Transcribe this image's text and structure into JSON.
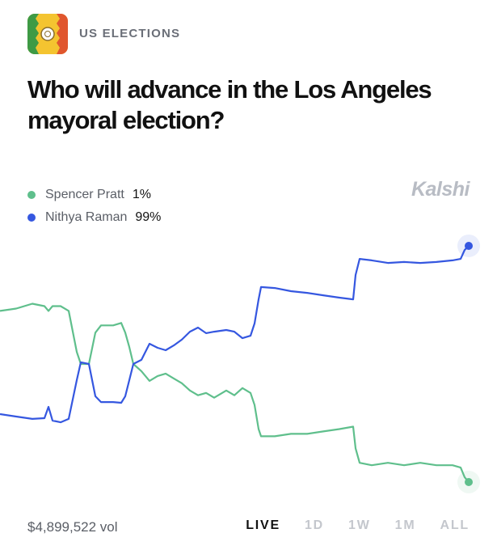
{
  "header": {
    "category": "US ELECTIONS",
    "title": "Who will advance in the Los Angeles mayoral election?",
    "brand": "Kalshi"
  },
  "chart_data": {
    "type": "line",
    "xlim": [
      0,
      580
    ],
    "ylim": [
      0,
      100
    ],
    "x": [
      0,
      20,
      40,
      55,
      60,
      65,
      75,
      85,
      95,
      100,
      110,
      118,
      125,
      140,
      150,
      155,
      160,
      165,
      175,
      185,
      195,
      205,
      215,
      225,
      235,
      245,
      255,
      265,
      280,
      290,
      300,
      310,
      315,
      320,
      323,
      340,
      360,
      380,
      400,
      420,
      437,
      440,
      445,
      460,
      480,
      500,
      520,
      540,
      560,
      570,
      575,
      580
    ],
    "series": [
      {
        "name": "Spencer Pratt",
        "color": "#5fbf8c",
        "values": [
          72,
          73,
          75,
          74,
          72,
          74,
          74,
          72,
          55,
          50,
          50,
          63,
          66,
          66,
          67,
          63,
          57,
          50,
          47,
          43,
          45,
          46,
          44,
          42,
          39,
          37,
          38,
          36,
          39,
          37,
          40,
          38,
          33,
          23,
          20,
          20,
          21,
          21,
          22,
          23,
          24,
          15,
          9,
          8,
          9,
          8,
          9,
          8,
          8,
          7,
          3,
          1
        ],
        "current": {
          "value": 1,
          "label": "1%"
        }
      },
      {
        "name": "Nithya Raman",
        "color": "#3557e0",
        "values": [
          29.2,
          28.2,
          27.2,
          27.5,
          32.2,
          26.5,
          25.8,
          27.2,
          43.3,
          50.7,
          50,
          36.6,
          34.2,
          34.2,
          33.9,
          36.6,
          43.3,
          50,
          51.7,
          58.4,
          56.7,
          55.7,
          57.7,
          60.1,
          63.4,
          65.1,
          62.8,
          63.4,
          64.1,
          63.4,
          60.7,
          61.7,
          66.8,
          76.8,
          81.9,
          81.5,
          80.2,
          79.5,
          78.5,
          77.5,
          76.8,
          86.9,
          93.6,
          93,
          91.9,
          92.3,
          91.9,
          92.3,
          93,
          93.6,
          97.3,
          99
        ],
        "current": {
          "value": 99,
          "label": "99%"
        }
      }
    ]
  },
  "footer": {
    "volume": "$4,899,522 vol",
    "ranges": [
      "LIVE",
      "1D",
      "1W",
      "1M",
      "ALL"
    ],
    "active_range": 0
  }
}
